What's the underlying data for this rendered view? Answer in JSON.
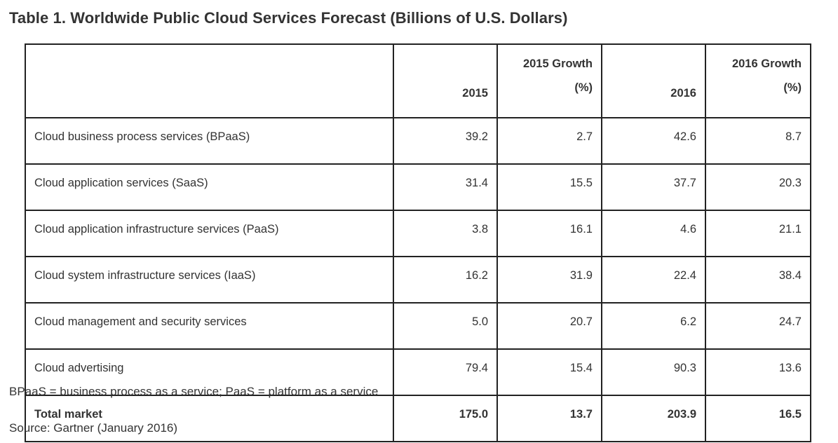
{
  "title": "Table 1. Worldwide Public Cloud Services Forecast (Billions of U.S. Dollars)",
  "table": {
    "headers": {
      "label": "",
      "y2015": "2015",
      "growth2015_line1": "2015 Growth",
      "growth2015_line2": "(%)",
      "y2016": "2016",
      "growth2016_line1": "2016 Growth",
      "growth2016_line2": "(%)"
    },
    "rows": [
      {
        "label": "Cloud business process services (BPaaS)",
        "y2015": "39.2",
        "g2015": "2.7",
        "y2016": "42.6",
        "g2016": "8.7"
      },
      {
        "label": "Cloud application services (SaaS)",
        "y2015": "31.4",
        "g2015": "15.5",
        "y2016": "37.7",
        "g2016": "20.3"
      },
      {
        "label": "Cloud application infrastructure services (PaaS)",
        "y2015": "3.8",
        "g2015": "16.1",
        "y2016": "4.6",
        "g2016": "21.1"
      },
      {
        "label": "Cloud system infrastructure services (IaaS)",
        "y2015": "16.2",
        "g2015": "31.9",
        "y2016": "22.4",
        "g2016": "38.4"
      },
      {
        "label": "Cloud management and security services",
        "y2015": "5.0",
        "g2015": "20.7",
        "y2016": "6.2",
        "g2016": "24.7"
      },
      {
        "label": "Cloud advertising",
        "y2015": "79.4",
        "g2015": "15.4",
        "y2016": "90.3",
        "g2016": "13.6"
      }
    ],
    "total": {
      "label": "Total market",
      "y2015": "175.0",
      "g2015": "13.7",
      "y2016": "203.9",
      "g2016": "16.5"
    }
  },
  "footnote": "BPaaS = business process as a service; PaaS = platform as a service",
  "source": "Source: Gartner (January 2016)"
}
